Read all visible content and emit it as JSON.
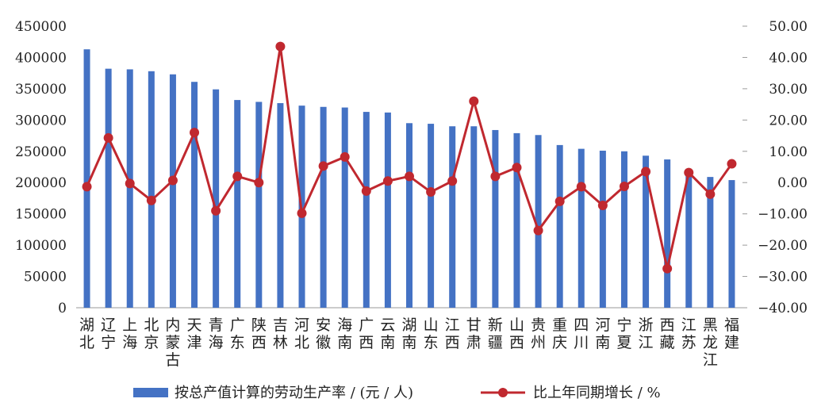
{
  "chart_data": {
    "type": "bar+line",
    "categories": [
      "湖北",
      "辽宁",
      "上海",
      "北京",
      "内蒙古",
      "天津",
      "青海",
      "广东",
      "陕西",
      "吉林",
      "河北",
      "安徽",
      "海南",
      "广西",
      "云南",
      "湖南",
      "山东",
      "江西",
      "甘肃",
      "新疆",
      "山西",
      "贵州",
      "重庆",
      "四川",
      "河南",
      "宁夏",
      "浙江",
      "西藏",
      "江苏",
      "黑龙江",
      "福建"
    ],
    "series": [
      {
        "name": "按总产值计算的劳动生产率 / (元 / 人)",
        "type": "bar",
        "axis": "left",
        "color": "#4472C4",
        "values": [
          413000,
          382000,
          381000,
          378000,
          373000,
          361000,
          349000,
          332000,
          329000,
          327000,
          323000,
          321000,
          320000,
          313000,
          312000,
          295000,
          294000,
          290000,
          290000,
          284000,
          279000,
          276000,
          260000,
          254000,
          251000,
          250000,
          243000,
          237000,
          218000,
          209000,
          204000
        ]
      },
      {
        "name": "比上年同期增长 / %",
        "type": "line",
        "axis": "right",
        "color": "#C0282F",
        "values": [
          -1.3,
          14.3,
          -0.3,
          -5.7,
          0.7,
          16.0,
          -9.0,
          2.0,
          0.0,
          43.5,
          -9.8,
          5.3,
          8.2,
          -2.7,
          0.5,
          2.0,
          -3.0,
          0.5,
          26.0,
          2.0,
          4.8,
          -15.3,
          -6.0,
          -1.3,
          -7.3,
          -1.2,
          3.5,
          -27.5,
          3.2,
          -3.7,
          6.0
        ]
      }
    ],
    "y_left": {
      "ylim": [
        0,
        450000
      ],
      "ticks": [
        "0",
        "50000",
        "100000",
        "150000",
        "200000",
        "250000",
        "300000",
        "350000",
        "400000",
        "450000"
      ]
    },
    "y_right": {
      "ylim": [
        -40,
        50
      ],
      "ticks": [
        "−40.00",
        "−30.00",
        "−20.00",
        "−10.00",
        "0.00",
        "10.00",
        "20.00",
        "30.00",
        "40.00",
        "50.00"
      ]
    },
    "title": "",
    "xlabel": "",
    "legend": [
      "按总产值计算的劳动生产率 / (元 / 人)",
      "比上年同期增长 / %"
    ],
    "legend_position": "bottom",
    "grid": false
  }
}
